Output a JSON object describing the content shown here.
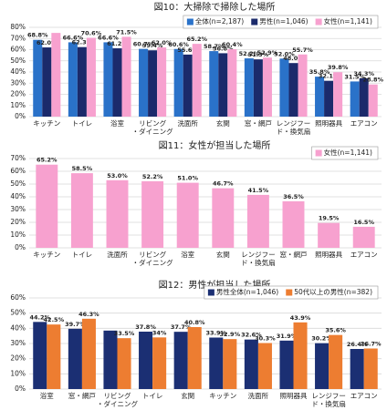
{
  "chart_data": [
    {
      "type": "bar",
      "title": "図10：大掃除で掃除した場所",
      "categories": [
        "キッチン",
        "トイレ",
        "浴室",
        "リビング\n・ダイニング",
        "洗面所",
        "玄関",
        "窓・網戸",
        "レンジフー\nド・換気扇",
        "照明器具",
        "エアコン"
      ],
      "series": [
        {
          "name": "全体(n=2,187)",
          "color": "#2a72c9",
          "values": [
            68.8,
            66.6,
            66.6,
            60.7,
            60.6,
            58.7,
            52.2,
            52.0,
            35.8,
            31.5
          ],
          "value_labels": [
            "68.8%",
            "66.6%",
            "66.6%",
            "60.7%",
            "60.6%",
            "58.7%",
            "52.2%",
            "52.0%",
            "35.8%",
            "31.5%"
          ]
        },
        {
          "name": "男性(n=1,046)",
          "color": "#1b2a6b",
          "values": [
            62.0,
            62.3,
            61.2,
            59.4,
            55.6,
            56.8,
            51.3,
            48.0,
            32.1,
            34.3
          ],
          "value_labels": [
            "62.0%",
            "62.3%",
            "61.2%",
            "59.4%",
            "55.6%",
            "56.8%",
            "51.3%",
            "48.0%",
            "32.1%",
            "34.3%"
          ]
        },
        {
          "name": "女性(n=1,141)",
          "color": "#f7a1cf",
          "values": [
            75.0,
            70.6,
            71.5,
            62.0,
            65.2,
            60.4,
            52.9,
            55.7,
            39.8,
            28.8
          ],
          "value_labels": [
            null,
            "70.6%",
            "71.5%",
            "62.0%",
            "65.2%",
            "60.4%",
            "52.9%",
            "55.7%",
            "39.8%",
            "28.8%"
          ]
        }
      ],
      "ylim": [
        0,
        80
      ],
      "yticks": [
        {
          "value": 0,
          "label": "0%"
        },
        {
          "value": 10,
          "label": "10%"
        },
        {
          "value": 20,
          "label": "20%"
        },
        {
          "value": 30,
          "label": "30%"
        },
        {
          "value": 40,
          "label": "40%"
        },
        {
          "value": 50,
          "label": "50%"
        },
        {
          "value": 60,
          "label": "60%"
        },
        {
          "value": 70,
          "label": "70%"
        },
        {
          "value": 80,
          "label": "80%"
        }
      ],
      "grid": true
    },
    {
      "type": "bar",
      "title": "図11：女性が担当した場所",
      "categories": [
        "キッチン",
        "トイレ",
        "洗面所",
        "リビング\n・ダイニング",
        "浴室",
        "玄関",
        "レンジフー\nド・換気扇",
        "窓・網戸",
        "照明器具",
        "エアコン"
      ],
      "series": [
        {
          "name": "女性(n=1,141)",
          "color": "#f7a1cf",
          "values": [
            65.2,
            58.5,
            53.0,
            52.2,
            51.0,
            46.7,
            41.5,
            36.5,
            19.5,
            16.5
          ],
          "value_labels": [
            "65.2%",
            "58.5%",
            "53.0%",
            "52.2%",
            "51.0%",
            "46.7%",
            "41.5%",
            "36.5%",
            "19.5%",
            "16.5%"
          ]
        }
      ],
      "ylim": [
        0,
        70
      ],
      "yticks": [
        {
          "value": 0,
          "label": "0%"
        },
        {
          "value": 10,
          "label": "10%"
        },
        {
          "value": 20,
          "label": "20%"
        },
        {
          "value": 30,
          "label": "30%"
        },
        {
          "value": 40,
          "label": "40%"
        },
        {
          "value": 50,
          "label": "50%"
        },
        {
          "value": 60,
          "label": "60%"
        },
        {
          "value": 70,
          "label": "70%"
        }
      ],
      "grid": true
    },
    {
      "type": "bar",
      "title": "図12：男性が担当した場所",
      "categories": [
        "浴室",
        "窓・網戸",
        "リビング\n・ダイニング",
        "トイレ",
        "玄関",
        "キッチン",
        "洗面所",
        "照明器具",
        "レンジフー\nド・換気扇",
        "エアコン"
      ],
      "series": [
        {
          "name": "男性全体(n=1,046)",
          "color": "#1b2f73",
          "values": [
            44.2,
            39.7,
            38.5,
            37.8,
            37.7,
            33.9,
            32.6,
            31.9,
            30.2,
            26.4
          ],
          "value_labels": [
            "44.2%",
            "39.7%",
            null,
            "37.8%",
            "37.7%",
            "33.9%",
            "32.6%",
            "31.9%",
            "30.2%",
            "26.4%"
          ]
        },
        {
          "name": "50代以上の男性(n=382)",
          "color": "#ed7d31",
          "values": [
            42.5,
            46.3,
            33.5,
            34,
            40.8,
            32.9,
            30.3,
            43.9,
            35.6,
            26.7
          ],
          "value_labels": [
            "42.5%",
            "46.3%",
            "33.5%",
            "34%",
            "40.8%",
            "32.9%",
            "30.3%",
            "43.9%",
            "35.6%",
            "26.7%"
          ]
        }
      ],
      "ylim": [
        0,
        60
      ],
      "yticks": [
        {
          "value": 0,
          "label": "0%"
        },
        {
          "value": 10,
          "label": "10%"
        },
        {
          "value": 20,
          "label": "20%"
        },
        {
          "value": 30,
          "label": "30%"
        },
        {
          "value": 40,
          "label": "40%"
        },
        {
          "value": 50,
          "label": "50%"
        },
        {
          "value": 60,
          "label": "60%"
        }
      ],
      "grid": true
    }
  ]
}
